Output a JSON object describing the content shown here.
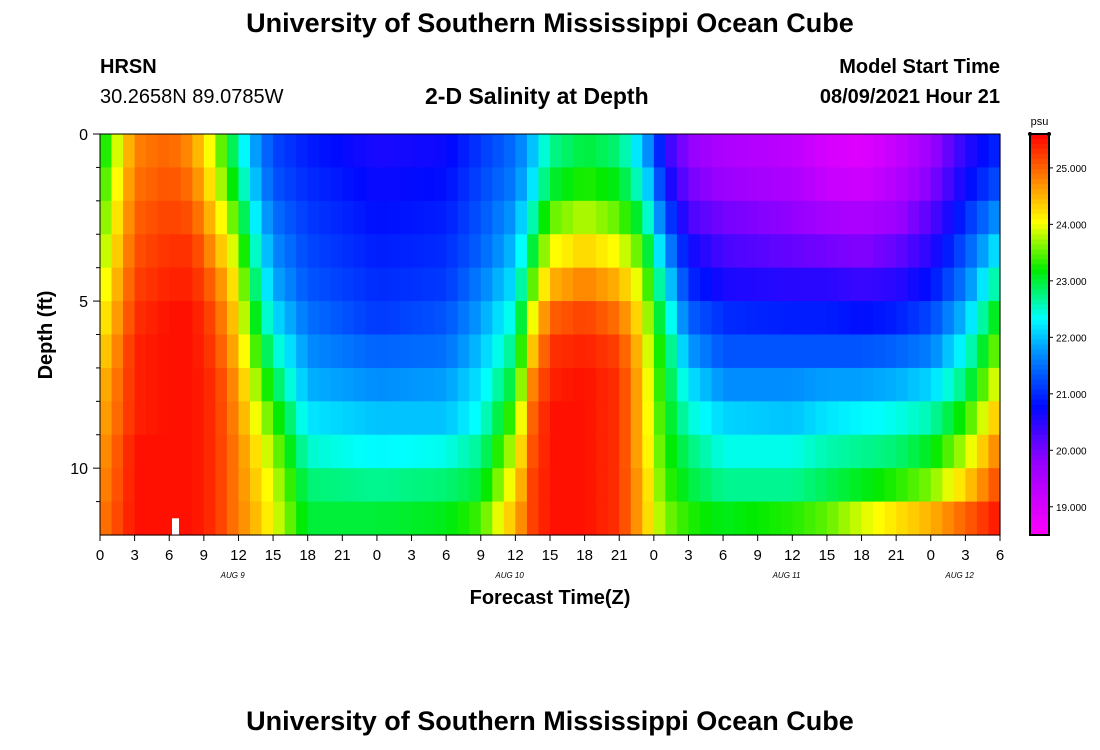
{
  "header": {
    "title": "University of Southern Mississippi Ocean Cube",
    "station": "HRSN",
    "coordinates": "30.2658N  89.0785W",
    "subtitle": "2-D Salinity at Depth",
    "model_start_label": "Model Start Time",
    "model_start_time": "08/09/2021 Hour 21"
  },
  "footer": {
    "title": "University of Southern Mississippi Ocean Cube"
  },
  "chart_data": {
    "type": "heatmap",
    "title": "2-D Salinity at Depth",
    "xlabel": "Forecast Time(Z)",
    "ylabel": "Depth (ft)",
    "x_hours_range": [
      0,
      78
    ],
    "xtick_hours": [
      0,
      3,
      6,
      9,
      12,
      15,
      18,
      21,
      24,
      27,
      30,
      33,
      36,
      39,
      42,
      45,
      48,
      51,
      54,
      57,
      60,
      63,
      66,
      69,
      72,
      75,
      78
    ],
    "xtick_labels": [
      "0",
      "3",
      "6",
      "9",
      "12",
      "15",
      "18",
      "21",
      "0",
      "3",
      "6",
      "9",
      "12",
      "15",
      "18",
      "21",
      "0",
      "3",
      "6",
      "9",
      "12",
      "15",
      "18",
      "21",
      "0",
      "3",
      "6"
    ],
    "date_labels": [
      {
        "hour": 11.5,
        "text": "AUG 9"
      },
      {
        "hour": 35.5,
        "text": "AUG 10"
      },
      {
        "hour": 59.5,
        "text": "AUG 11"
      },
      {
        "hour": 74.5,
        "text": "AUG 12"
      }
    ],
    "ylim": [
      0,
      12
    ],
    "y_major_ticks": [
      0,
      5,
      10
    ],
    "y_minor_ticks": [
      1,
      2,
      3,
      4,
      6,
      7,
      8,
      9,
      11
    ],
    "depth_levels_ft": [
      0.5,
      1.5,
      2.5,
      3.5,
      4.5,
      5.5,
      6.5,
      7.5,
      8.5,
      9.5,
      10.5,
      11.5
    ],
    "colorbar": {
      "unit": "psu",
      "min": 18.5,
      "max": 25.6,
      "ticks": [
        "19.000",
        "20.000",
        "21.000",
        "22.000",
        "23.000",
        "24.000",
        "25.000"
      ],
      "tick_values": [
        19,
        20,
        21,
        22,
        23,
        24,
        25
      ]
    },
    "missing_marker": {
      "hour": 6.5,
      "depth_range": [
        11.5,
        12
      ]
    },
    "profiles": [
      {
        "hour": 0,
        "values": [
          23.0,
          23.2,
          23.4,
          23.6,
          23.8,
          24.0,
          24.2,
          24.4,
          24.5,
          24.6,
          24.7,
          24.8
        ]
      },
      {
        "hour": 3,
        "values": [
          24.8,
          24.9,
          25.0,
          25.1,
          25.2,
          25.3,
          25.4,
          25.4,
          25.4,
          25.5,
          25.5,
          25.5
        ]
      },
      {
        "hour": 6,
        "values": [
          25.0,
          25.1,
          25.2,
          25.3,
          25.4,
          25.5,
          25.5,
          25.5,
          25.5,
          25.5,
          25.5,
          25.5
        ]
      },
      {
        "hour": 8,
        "values": [
          24.7,
          24.9,
          25.1,
          25.3,
          25.4,
          25.5,
          25.5,
          25.5,
          25.5,
          25.5,
          25.5,
          25.5
        ]
      },
      {
        "hour": 10,
        "values": [
          23.8,
          24.0,
          24.3,
          24.6,
          24.9,
          25.1,
          25.2,
          25.3,
          25.3,
          25.3,
          25.3,
          25.3
        ]
      },
      {
        "hour": 12,
        "values": [
          22.6,
          22.9,
          23.3,
          23.7,
          24.0,
          24.2,
          24.4,
          24.6,
          24.7,
          24.8,
          24.8,
          24.8
        ]
      },
      {
        "hour": 13,
        "values": [
          22.0,
          22.2,
          22.5,
          22.8,
          23.1,
          23.4,
          23.7,
          24.0,
          24.2,
          24.4,
          24.5,
          24.6
        ]
      },
      {
        "hour": 15,
        "values": [
          21.2,
          21.3,
          21.5,
          21.7,
          21.9,
          22.2,
          22.6,
          23.0,
          23.4,
          23.7,
          23.9,
          24.0
        ]
      },
      {
        "hour": 18,
        "values": [
          20.9,
          21.0,
          21.1,
          21.2,
          21.3,
          21.5,
          21.7,
          21.9,
          22.2,
          22.5,
          22.8,
          23.0
        ]
      },
      {
        "hour": 24,
        "values": [
          20.6,
          20.7,
          20.8,
          20.9,
          21.0,
          21.1,
          21.4,
          21.7,
          22.0,
          22.3,
          22.7,
          23.0
        ]
      },
      {
        "hour": 30,
        "values": [
          20.7,
          20.8,
          20.9,
          21.0,
          21.1,
          21.3,
          21.5,
          21.8,
          22.0,
          22.4,
          22.8,
          23.1
        ]
      },
      {
        "hour": 33,
        "values": [
          21.1,
          21.2,
          21.3,
          21.4,
          21.6,
          21.8,
          22.0,
          22.2,
          22.4,
          22.7,
          23.0,
          23.4
        ]
      },
      {
        "hour": 36,
        "values": [
          21.5,
          21.6,
          21.8,
          22.0,
          22.2,
          22.5,
          22.8,
          23.1,
          23.5,
          23.9,
          24.2,
          24.5
        ]
      },
      {
        "hour": 37.5,
        "values": [
          22.0,
          22.2,
          22.6,
          23.0,
          23.5,
          24.0,
          24.4,
          24.8,
          25.0,
          25.1,
          25.2,
          25.2
        ]
      },
      {
        "hour": 39,
        "values": [
          22.7,
          23.0,
          23.5,
          24.0,
          24.5,
          25.0,
          25.3,
          25.4,
          25.5,
          25.5,
          25.5,
          25.5
        ]
      },
      {
        "hour": 42,
        "values": [
          23.0,
          23.3,
          23.8,
          24.3,
          24.8,
          25.2,
          25.4,
          25.5,
          25.5,
          25.5,
          25.5,
          25.5
        ]
      },
      {
        "hour": 45,
        "values": [
          22.8,
          23.1,
          23.5,
          24.0,
          24.5,
          24.9,
          25.2,
          25.3,
          25.3,
          25.3,
          25.3,
          25.3
        ]
      },
      {
        "hour": 47,
        "values": [
          22.0,
          22.4,
          22.9,
          23.4,
          23.8,
          24.1,
          24.3,
          24.4,
          24.4,
          24.4,
          24.5,
          24.5
        ]
      },
      {
        "hour": 48,
        "values": [
          21.4,
          21.7,
          22.1,
          22.6,
          23.0,
          23.3,
          23.5,
          23.6,
          23.7,
          23.8,
          23.9,
          24.0
        ]
      },
      {
        "hour": 49,
        "values": [
          20.5,
          20.8,
          21.3,
          21.8,
          22.3,
          22.7,
          23.0,
          23.1,
          23.2,
          23.3,
          23.4,
          23.6
        ]
      },
      {
        "hour": 51,
        "values": [
          19.8,
          20.0,
          20.3,
          20.7,
          21.0,
          21.4,
          21.8,
          22.2,
          22.5,
          22.8,
          23.0,
          23.3
        ]
      },
      {
        "hour": 54,
        "values": [
          19.5,
          19.7,
          20.0,
          20.3,
          20.6,
          21.0,
          21.3,
          21.7,
          22.1,
          22.4,
          22.7,
          23.1
        ]
      },
      {
        "hour": 60,
        "values": [
          19.3,
          19.5,
          19.8,
          20.1,
          20.5,
          20.9,
          21.3,
          21.7,
          22.0,
          22.4,
          22.7,
          23.3
        ]
      },
      {
        "hour": 63,
        "values": [
          19.0,
          19.2,
          19.6,
          20.0,
          20.5,
          20.9,
          21.3,
          21.8,
          22.2,
          22.6,
          22.9,
          23.5
        ]
      },
      {
        "hour": 66,
        "values": [
          18.9,
          19.1,
          19.5,
          19.9,
          20.4,
          20.8,
          21.3,
          21.8,
          22.3,
          22.7,
          23.1,
          23.9
        ]
      },
      {
        "hour": 69,
        "values": [
          19.2,
          19.4,
          19.7,
          20.1,
          20.5,
          20.9,
          21.4,
          21.9,
          22.4,
          22.8,
          23.3,
          24.2
        ]
      },
      {
        "hour": 72,
        "values": [
          19.7,
          19.9,
          20.2,
          20.5,
          20.8,
          21.2,
          21.6,
          22.1,
          22.6,
          23.1,
          23.6,
          24.5
        ]
      },
      {
        "hour": 75,
        "values": [
          20.5,
          20.7,
          21.0,
          21.3,
          21.6,
          22.0,
          22.4,
          22.8,
          23.3,
          23.8,
          24.3,
          25.0
        ]
      },
      {
        "hour": 78,
        "values": [
          21.0,
          21.3,
          21.8,
          22.3,
          22.8,
          23.3,
          23.7,
          24.1,
          24.5,
          24.9,
          25.2,
          25.5
        ]
      }
    ]
  }
}
